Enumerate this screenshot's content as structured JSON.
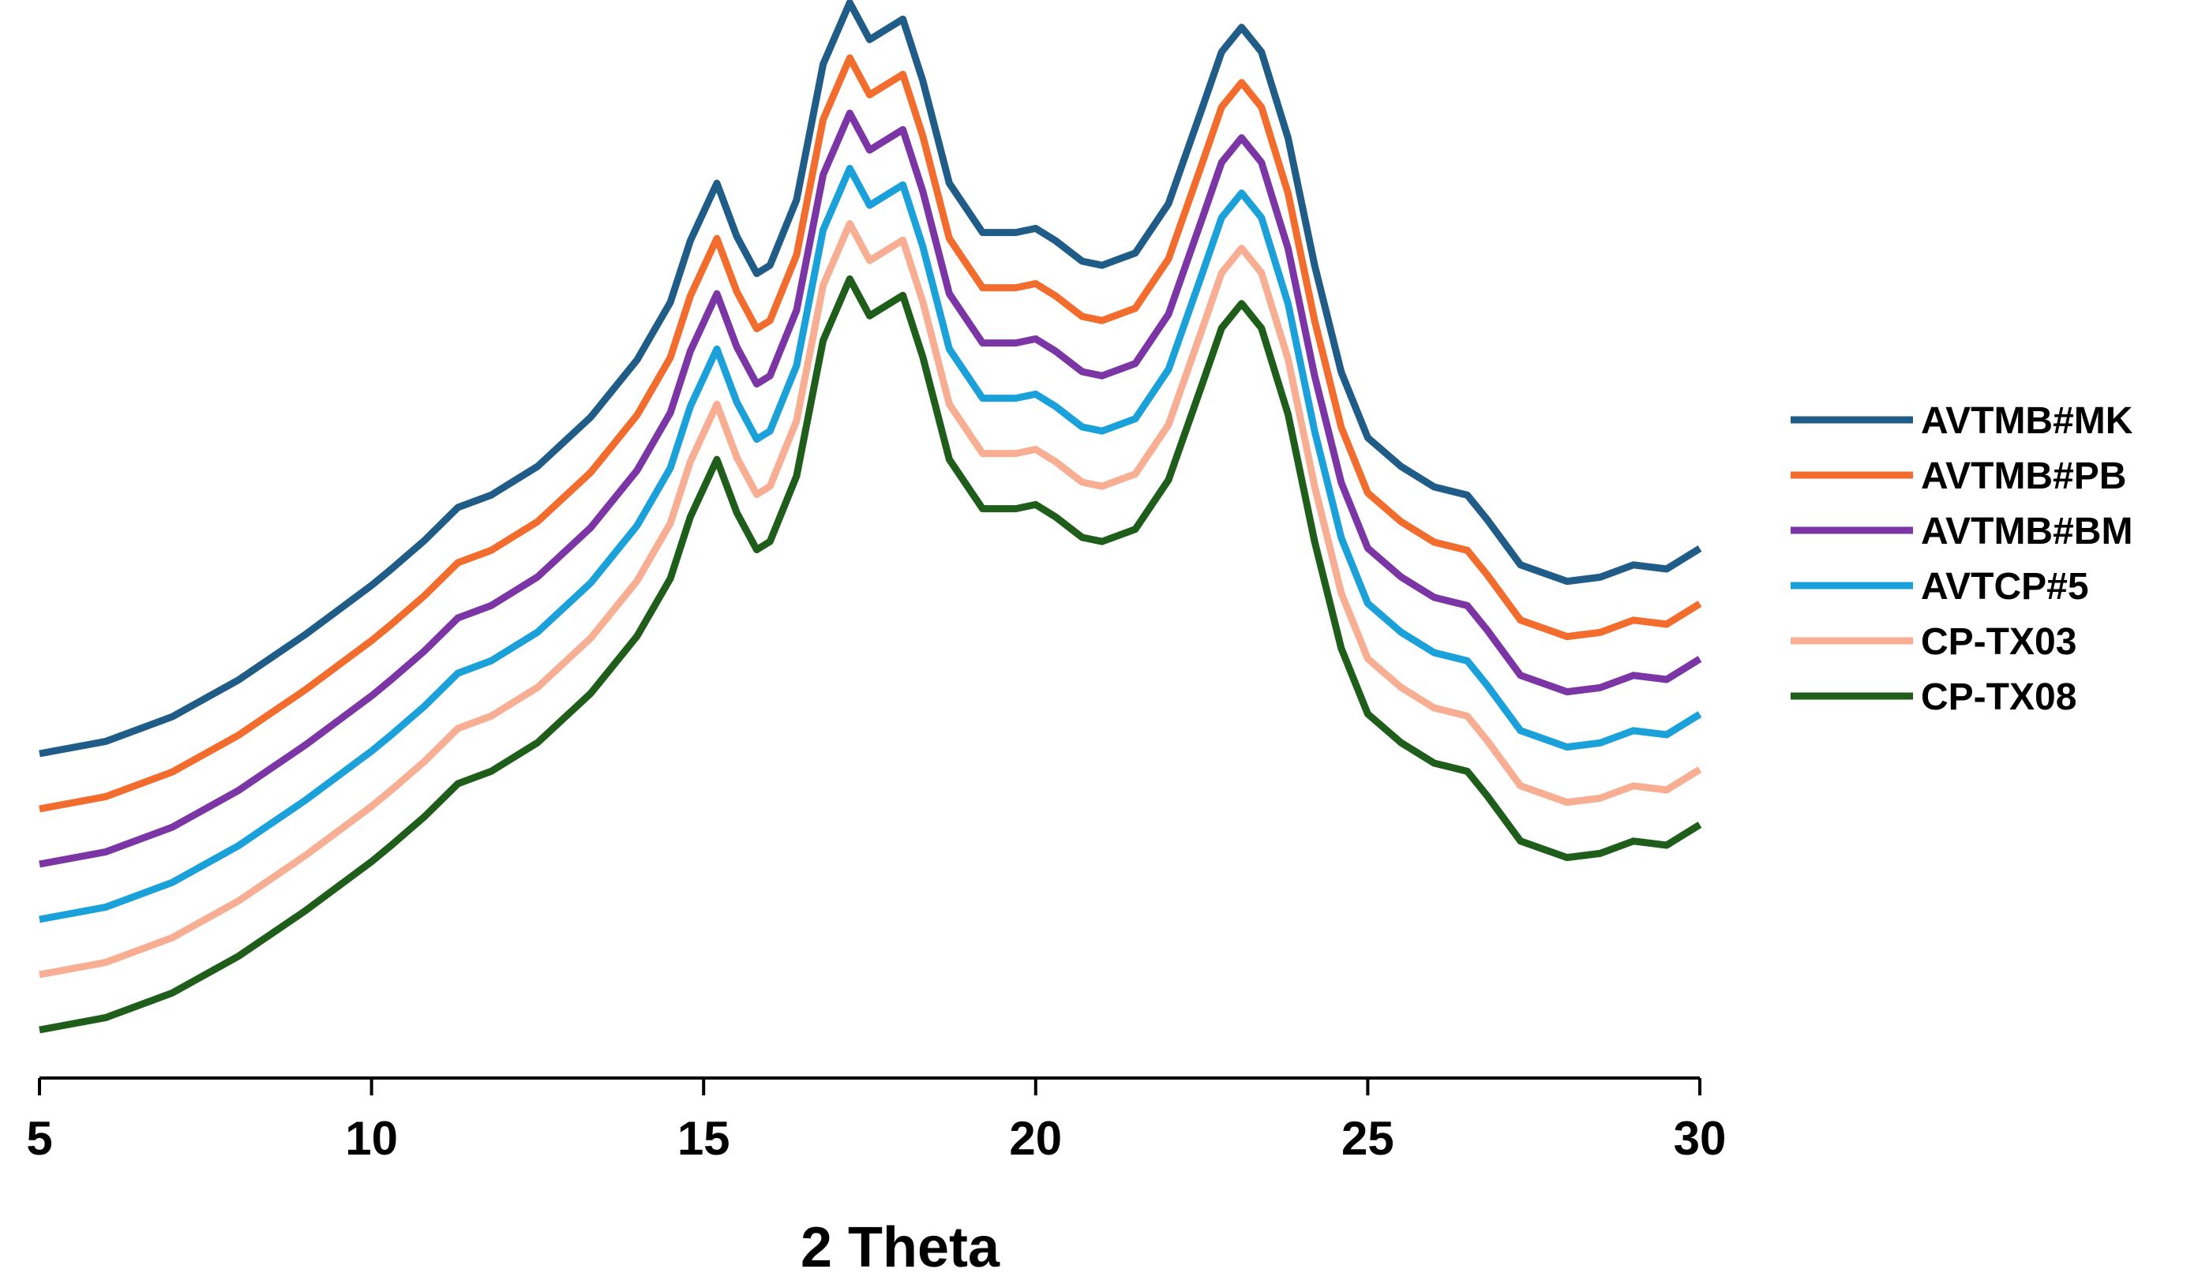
{
  "chart_data": {
    "type": "line",
    "title": "",
    "xlabel": "2 Theta",
    "ylabel": "",
    "xlim": [
      5,
      30
    ],
    "xticks": [
      5,
      10,
      15,
      20,
      25,
      30
    ],
    "grid": false,
    "legend_position": "right",
    "y_axis_shown": false,
    "series": [
      {
        "name": "AVTMB#MK",
        "color": "#1F5C87",
        "x": [
          5,
          6,
          7,
          8,
          9,
          10,
          10.3,
          10.8,
          11.3,
          11.8,
          12.5,
          13.3,
          14.0,
          14.5,
          14.8,
          15.2,
          15.5,
          15.8,
          16.0,
          16.4,
          16.8,
          17.2,
          17.5,
          17.7,
          18.0,
          18.3,
          18.7,
          19.2,
          19.7,
          20.0,
          20.3,
          20.7,
          21.0,
          21.5,
          22.0,
          22.5,
          22.8,
          23.1,
          23.4,
          23.8,
          24.2,
          24.6,
          25.0,
          25.5,
          26.0,
          26.5,
          26.8,
          27.3,
          28.0,
          28.5,
          29.0,
          29.5,
          30.0
        ],
        "y": [
          0.0,
          0.03,
          0.09,
          0.18,
          0.29,
          0.41,
          0.45,
          0.52,
          0.6,
          0.63,
          0.7,
          0.82,
          0.96,
          1.1,
          1.25,
          1.39,
          1.26,
          1.17,
          1.19,
          1.35,
          1.68,
          1.83,
          1.74,
          1.76,
          1.79,
          1.64,
          1.39,
          1.27,
          1.27,
          1.28,
          1.25,
          1.2,
          1.19,
          1.22,
          1.34,
          1.57,
          1.71,
          1.77,
          1.71,
          1.5,
          1.19,
          0.93,
          0.77,
          0.7,
          0.65,
          0.63,
          0.57,
          0.46,
          0.42,
          0.43,
          0.46,
          0.45,
          0.5
        ]
      },
      {
        "name": "AVTMB#PB",
        "color": "#F26D2D",
        "x": [
          5,
          6,
          7,
          8,
          9,
          10,
          10.3,
          10.8,
          11.3,
          11.8,
          12.5,
          13.3,
          14.0,
          14.5,
          14.8,
          15.2,
          15.5,
          15.8,
          16.0,
          16.4,
          16.8,
          17.2,
          17.5,
          17.7,
          18.0,
          18.3,
          18.7,
          19.2,
          19.7,
          20.0,
          20.3,
          20.7,
          21.0,
          21.5,
          22.0,
          22.5,
          22.8,
          23.1,
          23.4,
          23.8,
          24.2,
          24.6,
          25.0,
          25.5,
          26.0,
          26.5,
          26.8,
          27.3,
          28.0,
          28.5,
          29.0,
          29.5,
          30.0
        ],
        "y": [
          0.0,
          0.03,
          0.09,
          0.18,
          0.29,
          0.41,
          0.45,
          0.52,
          0.6,
          0.63,
          0.7,
          0.82,
          0.96,
          1.1,
          1.25,
          1.39,
          1.26,
          1.17,
          1.19,
          1.35,
          1.68,
          1.83,
          1.74,
          1.76,
          1.79,
          1.64,
          1.39,
          1.27,
          1.27,
          1.28,
          1.25,
          1.2,
          1.19,
          1.22,
          1.34,
          1.57,
          1.71,
          1.77,
          1.71,
          1.5,
          1.19,
          0.93,
          0.77,
          0.7,
          0.65,
          0.63,
          0.57,
          0.46,
          0.42,
          0.43,
          0.46,
          0.45,
          0.5
        ]
      },
      {
        "name": "AVTMB#BM",
        "color": "#7B35A5",
        "x": [
          5,
          6,
          7,
          8,
          9,
          10,
          10.3,
          10.8,
          11.3,
          11.8,
          12.5,
          13.3,
          14.0,
          14.5,
          14.8,
          15.2,
          15.5,
          15.8,
          16.0,
          16.4,
          16.8,
          17.2,
          17.5,
          17.7,
          18.0,
          18.3,
          18.7,
          19.2,
          19.7,
          20.0,
          20.3,
          20.7,
          21.0,
          21.5,
          22.0,
          22.5,
          22.8,
          23.1,
          23.4,
          23.8,
          24.2,
          24.6,
          25.0,
          25.5,
          26.0,
          26.5,
          26.8,
          27.3,
          28.0,
          28.5,
          29.0,
          29.5,
          30.0
        ],
        "y": [
          0.0,
          0.03,
          0.09,
          0.18,
          0.29,
          0.41,
          0.45,
          0.52,
          0.6,
          0.63,
          0.7,
          0.82,
          0.96,
          1.1,
          1.25,
          1.39,
          1.26,
          1.17,
          1.19,
          1.35,
          1.68,
          1.83,
          1.74,
          1.76,
          1.79,
          1.64,
          1.39,
          1.27,
          1.27,
          1.28,
          1.25,
          1.2,
          1.19,
          1.22,
          1.34,
          1.57,
          1.71,
          1.77,
          1.71,
          1.5,
          1.19,
          0.93,
          0.77,
          0.7,
          0.65,
          0.63,
          0.57,
          0.46,
          0.42,
          0.43,
          0.46,
          0.45,
          0.5
        ]
      },
      {
        "name": "AVTCP#5",
        "color": "#1BA1DA",
        "x": [
          5,
          6,
          7,
          8,
          9,
          10,
          10.3,
          10.8,
          11.3,
          11.8,
          12.5,
          13.3,
          14.0,
          14.5,
          14.8,
          15.2,
          15.5,
          15.8,
          16.0,
          16.4,
          16.8,
          17.2,
          17.5,
          17.7,
          18.0,
          18.3,
          18.7,
          19.2,
          19.7,
          20.0,
          20.3,
          20.7,
          21.0,
          21.5,
          22.0,
          22.5,
          22.8,
          23.1,
          23.4,
          23.8,
          24.2,
          24.6,
          25.0,
          25.5,
          26.0,
          26.5,
          26.8,
          27.3,
          28.0,
          28.5,
          29.0,
          29.5,
          30.0
        ],
        "y": [
          0.0,
          0.03,
          0.09,
          0.18,
          0.29,
          0.41,
          0.45,
          0.52,
          0.6,
          0.63,
          0.7,
          0.82,
          0.96,
          1.1,
          1.25,
          1.39,
          1.26,
          1.17,
          1.19,
          1.35,
          1.68,
          1.83,
          1.74,
          1.76,
          1.79,
          1.64,
          1.39,
          1.27,
          1.27,
          1.28,
          1.25,
          1.2,
          1.19,
          1.22,
          1.34,
          1.57,
          1.71,
          1.77,
          1.71,
          1.5,
          1.19,
          0.93,
          0.77,
          0.7,
          0.65,
          0.63,
          0.57,
          0.46,
          0.42,
          0.43,
          0.46,
          0.45,
          0.5
        ]
      },
      {
        "name": "CP-TX03",
        "color": "#F7AE93",
        "x": [
          5,
          6,
          7,
          8,
          9,
          10,
          10.3,
          10.8,
          11.3,
          11.8,
          12.5,
          13.3,
          14.0,
          14.5,
          14.8,
          15.2,
          15.5,
          15.8,
          16.0,
          16.4,
          16.8,
          17.2,
          17.5,
          17.7,
          18.0,
          18.3,
          18.7,
          19.2,
          19.7,
          20.0,
          20.3,
          20.7,
          21.0,
          21.5,
          22.0,
          22.5,
          22.8,
          23.1,
          23.4,
          23.8,
          24.2,
          24.6,
          25.0,
          25.5,
          26.0,
          26.5,
          26.8,
          27.3,
          28.0,
          28.5,
          29.0,
          29.5,
          30.0
        ],
        "y": [
          0.0,
          0.03,
          0.09,
          0.18,
          0.29,
          0.41,
          0.45,
          0.52,
          0.6,
          0.63,
          0.7,
          0.82,
          0.96,
          1.1,
          1.25,
          1.39,
          1.26,
          1.17,
          1.19,
          1.35,
          1.68,
          1.83,
          1.74,
          1.76,
          1.79,
          1.64,
          1.39,
          1.27,
          1.27,
          1.28,
          1.25,
          1.2,
          1.19,
          1.22,
          1.34,
          1.57,
          1.71,
          1.77,
          1.71,
          1.5,
          1.19,
          0.93,
          0.77,
          0.7,
          0.65,
          0.63,
          0.57,
          0.46,
          0.42,
          0.43,
          0.46,
          0.45,
          0.5
        ]
      },
      {
        "name": "CP-TX08",
        "color": "#1E5E1A",
        "x": [
          5,
          6,
          7,
          8,
          9,
          10,
          10.3,
          10.8,
          11.3,
          11.8,
          12.5,
          13.3,
          14.0,
          14.5,
          14.8,
          15.2,
          15.5,
          15.8,
          16.0,
          16.4,
          16.8,
          17.2,
          17.5,
          17.7,
          18.0,
          18.3,
          18.7,
          19.2,
          19.7,
          20.0,
          20.3,
          20.7,
          21.0,
          21.5,
          22.0,
          22.5,
          22.8,
          23.1,
          23.4,
          23.8,
          24.2,
          24.6,
          25.0,
          25.5,
          26.0,
          26.5,
          26.8,
          27.3,
          28.0,
          28.5,
          29.0,
          29.5,
          30.0
        ],
        "y": [
          0.0,
          0.03,
          0.09,
          0.18,
          0.29,
          0.41,
          0.45,
          0.52,
          0.6,
          0.63,
          0.7,
          0.82,
          0.96,
          1.1,
          1.25,
          1.39,
          1.26,
          1.17,
          1.19,
          1.35,
          1.68,
          1.83,
          1.74,
          1.76,
          1.79,
          1.64,
          1.39,
          1.27,
          1.27,
          1.28,
          1.25,
          1.2,
          1.19,
          1.22,
          1.34,
          1.57,
          1.71,
          1.77,
          1.71,
          1.5,
          1.19,
          0.93,
          0.77,
          0.7,
          0.65,
          0.63,
          0.57,
          0.46,
          0.42,
          0.43,
          0.46,
          0.45,
          0.5
        ]
      }
    ]
  }
}
